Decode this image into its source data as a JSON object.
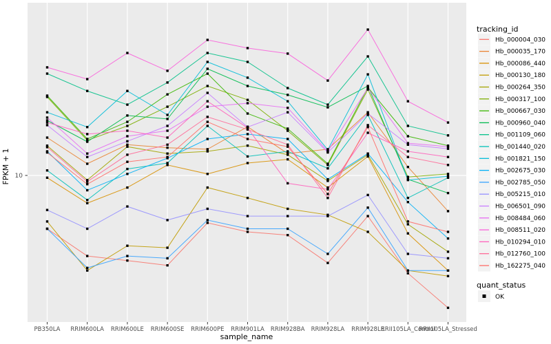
{
  "axes": {
    "x_title": "sample_name",
    "y_title": "FPKM + 1",
    "y_tick_label": "10"
  },
  "legend": {
    "tracking_title": "tracking_id",
    "quant_title": "quant_status",
    "quant_ok_label": "OK",
    "quant_key_shape": "black-square"
  },
  "colors": {
    "panel_bg": "#EBEBEB",
    "grid": "#FFFFFF",
    "axis_text": "#4D4D4D",
    "title_text": "#000000",
    "key_bg": "#F2F2F2",
    "point": "#000000"
  },
  "chart_data": {
    "type": "line",
    "title": "",
    "xlabel": "sample_name",
    "ylabel": "FPKM + 1",
    "y_scale": "log10",
    "y_tick_values": [
      10
    ],
    "ylim_approx": [
      1.05,
      100
    ],
    "grid": "major-only",
    "legend_position": "right",
    "point_shape": "square",
    "quant_status_all_points": "OK",
    "categories": [
      "PB350LA",
      "RRIM600LA",
      "RRIM600LE",
      "RRIM600SE",
      "RRIM600PE",
      "RRIM901LA",
      "RRIM928BA",
      "RRIM928LA",
      "RRIM928LE",
      "RRII105LA_Control",
      "RRII105LA_Stressed"
    ],
    "series": [
      {
        "name": "Hb_000004_030",
        "color": "#F8766D",
        "values": [
          4.9,
          3.4,
          3.2,
          3.0,
          5.3,
          4.7,
          4.5,
          3.1,
          5.8,
          2.7,
          1.7
        ]
      },
      {
        "name": "Hb_000035_170",
        "color": "#EA8331",
        "values": [
          16.6,
          11.7,
          15.1,
          14.5,
          14.2,
          19.2,
          13.4,
          14.2,
          23.3,
          11.2,
          6.2
        ]
      },
      {
        "name": "Hb_000086_440",
        "color": "#D89000",
        "values": [
          9.7,
          6.9,
          8.5,
          11.5,
          10.2,
          11.8,
          12.4,
          8.5,
          12.9,
          4.6,
          2.8
        ]
      },
      {
        "name": "Hb_000130_180",
        "color": "#C09B00",
        "values": [
          5.4,
          2.8,
          3.9,
          3.8,
          8.5,
          7.4,
          6.4,
          5.9,
          4.7,
          2.8,
          2.6
        ]
      },
      {
        "name": "Hb_000264_350",
        "color": "#A3A500",
        "values": [
          14.9,
          9.4,
          14.7,
          13.4,
          13.8,
          14.9,
          13.2,
          9.3,
          13.2,
          5.2,
          3.6
        ]
      },
      {
        "name": "Hb_000317_100",
        "color": "#7CAE00",
        "values": [
          28.6,
          16.0,
          19.4,
          25.1,
          33.1,
          27.5,
          18.2,
          11.5,
          31.6,
          9.8,
          10.2
        ]
      },
      {
        "name": "Hb_000667_030",
        "color": "#39B600",
        "values": [
          29.1,
          16.3,
          20.5,
          29.6,
          39.1,
          22.9,
          18.7,
          11.7,
          32.5,
          16.9,
          14.9
        ]
      },
      {
        "name": "Hb_000960_040",
        "color": "#00BB4E",
        "values": [
          20.9,
          15.7,
          22.3,
          21.3,
          41.7,
          33.1,
          29.4,
          24.9,
          33.1,
          9.5,
          7.9
        ]
      },
      {
        "name": "Hb_001109_060",
        "color": "#00C087",
        "values": [
          39.1,
          31.0,
          25.8,
          34.7,
          51.5,
          45.7,
          32.2,
          25.8,
          49.2,
          19.4,
          17.1
        ]
      },
      {
        "name": "Hb_001440_020",
        "color": "#00C0B8",
        "values": [
          10.7,
          7.2,
          10.9,
          11.8,
          19.4,
          12.9,
          13.8,
          11.0,
          22.5,
          7.4,
          9.7
        ]
      },
      {
        "name": "Hb_001821_150",
        "color": "#00BCD8",
        "values": [
          23.3,
          19.1,
          31.0,
          22.5,
          45.7,
          37.0,
          27.0,
          14.1,
          38.7,
          9.4,
          9.9
        ]
      },
      {
        "name": "Hb_002675_030",
        "color": "#00B0F6",
        "values": [
          13.8,
          8.2,
          10.2,
          12.6,
          16.3,
          17.4,
          16.3,
          9.5,
          13.4,
          7.0,
          4.3
        ]
      },
      {
        "name": "Hb_002785_050",
        "color": "#35A2FF",
        "values": [
          4.9,
          2.9,
          3.4,
          3.3,
          5.5,
          4.9,
          4.9,
          3.5,
          6.5,
          2.8,
          2.8
        ]
      },
      {
        "name": "Hb_005215_010",
        "color": "#9590FF",
        "values": [
          6.3,
          4.9,
          6.6,
          5.5,
          6.4,
          5.8,
          5.8,
          5.8,
          7.7,
          3.5,
          3.3
        ]
      },
      {
        "name": "Hb_006501_090",
        "color": "#C77CFF",
        "values": [
          19.6,
          12.8,
          15.8,
          19.4,
          30.2,
          19.1,
          23.3,
          13.6,
          22.9,
          15.1,
          14.3
        ]
      },
      {
        "name": "Hb_008484_060",
        "color": "#E76BF3",
        "values": [
          21.7,
          13.4,
          16.9,
          18.2,
          25.1,
          26.3,
          24.7,
          13.8,
          32.2,
          15.4,
          14.7
        ]
      },
      {
        "name": "Hb_008511_020",
        "color": "#FA62DB",
        "values": [
          42.5,
          36.3,
          51.5,
          40.6,
          61.4,
          55.0,
          51.1,
          35.6,
          70.5,
          27.0,
          20.3
        ]
      },
      {
        "name": "Hb_010294_010",
        "color": "#FF62BC",
        "values": [
          20.3,
          17.4,
          18.2,
          16.6,
          27.0,
          18.9,
          9.0,
          8.3,
          17.7,
          13.8,
          12.8
        ]
      },
      {
        "name": "Hb_012760_100",
        "color": "#FF6A98",
        "values": [
          14.6,
          9.2,
          13.2,
          15.1,
          21.9,
          18.5,
          15.1,
          7.4,
          19.6,
          12.8,
          11.5
        ]
      },
      {
        "name": "Hb_162275_040",
        "color": "#FF6C67",
        "values": [
          13.6,
          8.9,
          12.0,
          12.8,
          20.5,
          16.3,
          14.7,
          7.8,
          19.1,
          5.4,
          4.7
        ]
      }
    ]
  }
}
